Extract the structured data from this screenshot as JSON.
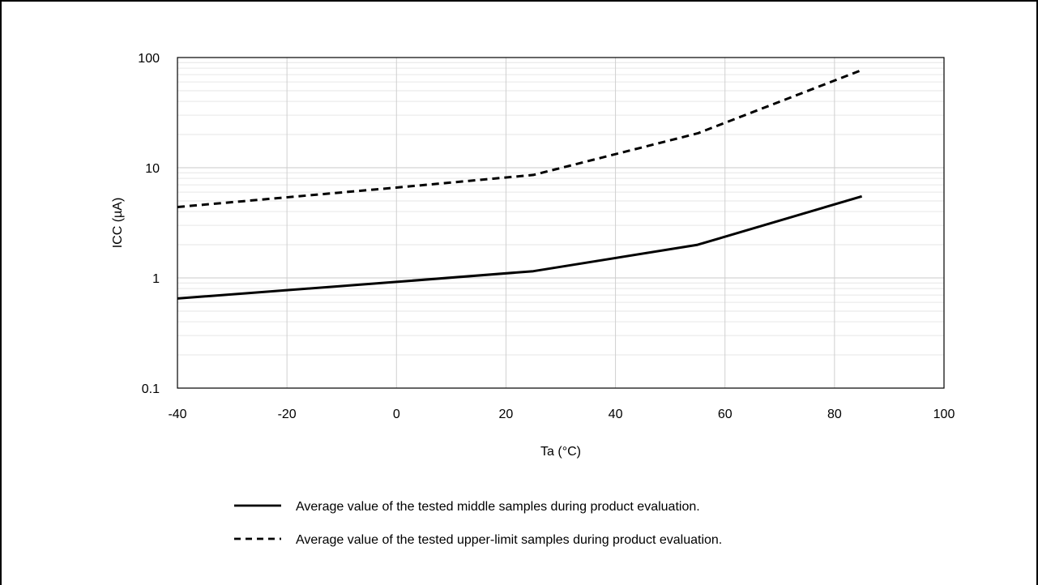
{
  "chart_data": {
    "type": "line",
    "title": "",
    "xlabel": "Ta (°C)",
    "ylabel": "ICC (µA)",
    "xlim": [
      -40,
      100
    ],
    "ylim": [
      0.1,
      100
    ],
    "yscale": "log",
    "grid": true,
    "x_ticks": [
      "-40",
      "-20",
      "0",
      "20",
      "40",
      "60",
      "80",
      "100"
    ],
    "y_ticks": [
      "0.1",
      "1",
      "10",
      "100"
    ],
    "legend_position": "bottom",
    "series": [
      {
        "name": "Average value of the tested middle samples during product evaluation.",
        "style": "solid",
        "color": "#000000",
        "x": [
          -40,
          0,
          25,
          55,
          85
        ],
        "y": [
          0.65,
          0.92,
          1.15,
          2.0,
          5.5
        ]
      },
      {
        "name": "Average value of the tested upper-limit samples during product evaluation.",
        "style": "dashed",
        "color": "#000000",
        "x": [
          -40,
          0,
          25,
          55,
          85
        ],
        "y": [
          4.4,
          6.6,
          8.6,
          20.5,
          77
        ]
      }
    ]
  }
}
